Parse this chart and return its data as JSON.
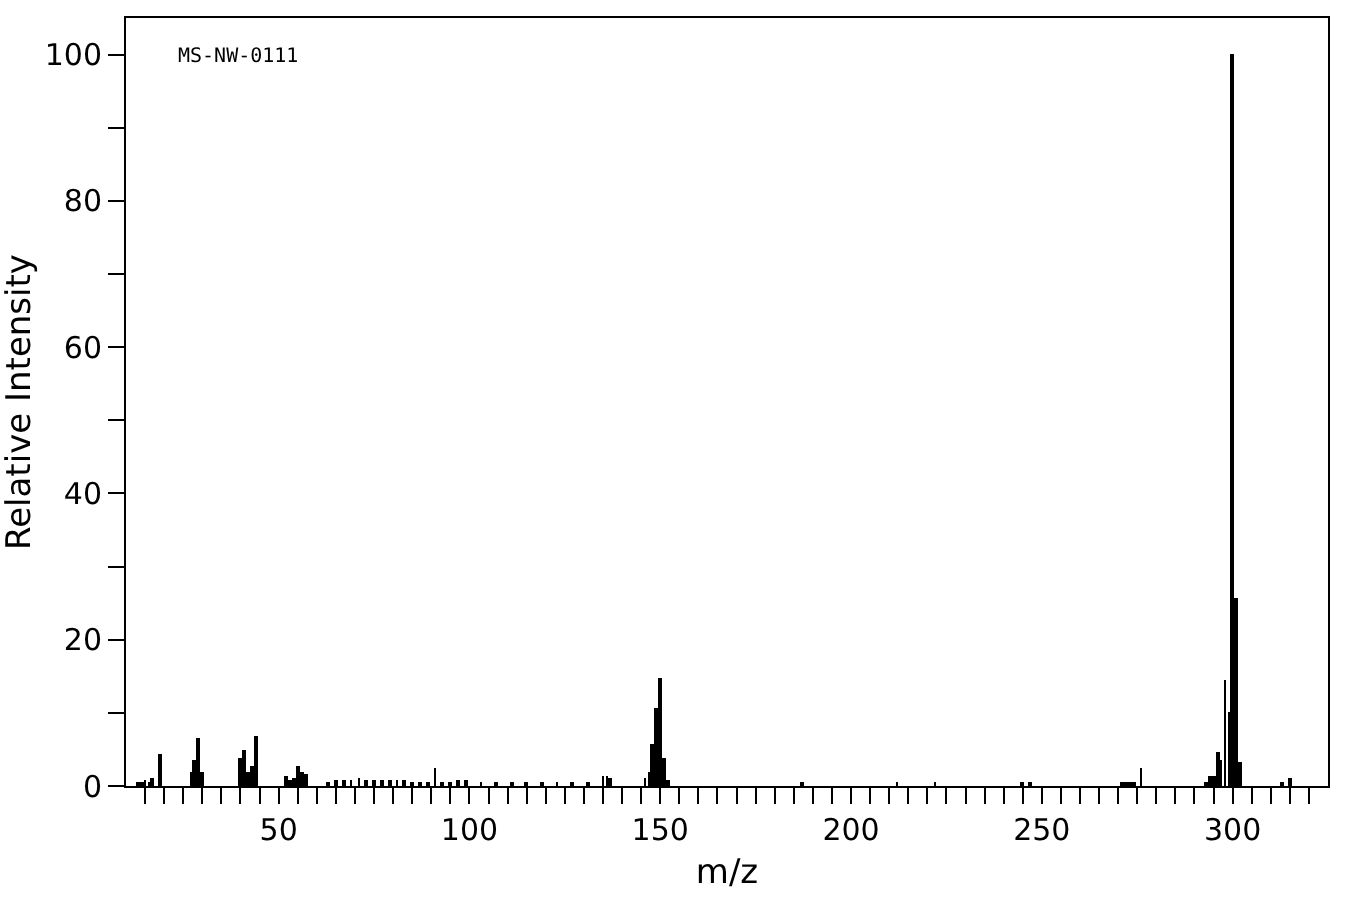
{
  "chart_data": {
    "type": "bar",
    "xlabel": "m/z",
    "ylabel": "Relative Intensity",
    "annotations": [
      "MS-NW-0111"
    ],
    "x": [
      13,
      14,
      15,
      16,
      17,
      19,
      27,
      28,
      29,
      30,
      40,
      41,
      42,
      43,
      44,
      52,
      53,
      54,
      55,
      56,
      57,
      63,
      65,
      67,
      69,
      71,
      73,
      75,
      77,
      79,
      81,
      83,
      85,
      87,
      89,
      91,
      93,
      95,
      97,
      99,
      103,
      107,
      111,
      115,
      119,
      123,
      127,
      131,
      135,
      136,
      137,
      146,
      147,
      148,
      149,
      150,
      151,
      152,
      187,
      212,
      222,
      245,
      247,
      271,
      272,
      273,
      274,
      276,
      293,
      294,
      295,
      296,
      297,
      298,
      299,
      300,
      301,
      302,
      313,
      315
    ],
    "values": [
      0.5,
      0.6,
      0.8,
      0.6,
      1.2,
      4.3,
      2.0,
      3.6,
      6.7,
      2.0,
      3.9,
      5.0,
      1.8,
      2.8,
      6.9,
      1.4,
      0.8,
      1.1,
      2.8,
      1.8,
      1.7,
      0.6,
      0.8,
      0.8,
      0.9,
      1.0,
      0.7,
      0.8,
      0.9,
      0.7,
      0.8,
      0.7,
      0.6,
      0.6,
      0.5,
      2.5,
      0.6,
      0.6,
      0.7,
      0.9,
      0.5,
      0.6,
      0.5,
      0.5,
      0.6,
      0.4,
      0.5,
      0.5,
      1.4,
      1.4,
      1.0,
      1.0,
      1.8,
      5.7,
      10.7,
      14.8,
      3.9,
      0.8,
      0.5,
      0.3,
      0.4,
      0.4,
      0.4,
      0.5,
      0.5,
      0.6,
      0.5,
      2.5,
      0.4,
      1.5,
      1.5,
      4.7,
      3.6,
      14.4,
      10.2,
      100,
      25.7,
      3.4,
      0.5,
      1.0
    ],
    "color": "#000000",
    "xlim": [
      10,
      325
    ],
    "xticks": [
      {
        "value": 15,
        "label": null
      },
      {
        "value": 20,
        "label": null
      },
      {
        "value": 25,
        "label": null
      },
      {
        "value": 30,
        "label": null
      },
      {
        "value": 35,
        "label": null
      },
      {
        "value": 40,
        "label": null
      },
      {
        "value": 45,
        "label": null
      },
      50,
      {
        "value": 55,
        "label": null
      },
      {
        "value": 60,
        "label": null
      },
      {
        "value": 65,
        "label": null
      },
      {
        "value": 70,
        "label": null
      },
      {
        "value": 75,
        "label": null
      },
      {
        "value": 80,
        "label": null
      },
      {
        "value": 85,
        "label": null
      },
      {
        "value": 90,
        "label": null
      },
      {
        "value": 95,
        "label": null
      },
      100,
      {
        "value": 105,
        "label": null
      },
      {
        "value": 110,
        "label": null
      },
      {
        "value": 115,
        "label": null
      },
      {
        "value": 120,
        "label": null
      },
      {
        "value": 125,
        "label": null
      },
      {
        "value": 130,
        "label": null
      },
      {
        "value": 135,
        "label": null
      },
      {
        "value": 140,
        "label": null
      },
      {
        "value": 145,
        "label": null
      },
      150,
      {
        "value": 155,
        "label": null
      },
      {
        "value": 160,
        "label": null
      },
      {
        "value": 165,
        "label": null
      },
      {
        "value": 170,
        "label": null
      },
      {
        "value": 175,
        "label": null
      },
      {
        "value": 180,
        "label": null
      },
      {
        "value": 185,
        "label": null
      },
      {
        "value": 190,
        "label": null
      },
      {
        "value": 195,
        "label": null
      },
      200,
      {
        "value": 205,
        "label": null
      },
      {
        "value": 210,
        "label": null
      },
      {
        "value": 215,
        "label": null
      },
      {
        "value": 220,
        "label": null
      },
      {
        "value": 225,
        "label": null
      },
      {
        "value": 230,
        "label": null
      },
      {
        "value": 235,
        "label": null
      },
      {
        "value": 240,
        "label": null
      },
      {
        "value": 245,
        "label": null
      },
      250,
      {
        "value": 255,
        "label": null
      },
      {
        "value": 260,
        "label": null
      },
      {
        "value": 265,
        "label": null
      },
      {
        "value": 270,
        "label": null
      },
      {
        "value": 275,
        "label": null
      },
      {
        "value": 280,
        "label": null
      },
      {
        "value": 285,
        "label": null
      },
      {
        "value": 290,
        "label": null
      },
      {
        "value": 295,
        "label": null
      },
      300,
      {
        "value": 305,
        "label": null
      },
      {
        "value": 310,
        "label": null
      },
      {
        "value": 315,
        "label": null
      },
      {
        "value": 320,
        "label": null
      }
    ],
    "ylim": [
      0,
      105
    ],
    "yticks": [
      0,
      {
        "value": 10,
        "label": null
      },
      20,
      {
        "value": 30,
        "label": null
      },
      40,
      {
        "value": 50,
        "label": null
      },
      60,
      {
        "value": 70,
        "label": null
      },
      80,
      {
        "value": 90,
        "label": null
      },
      100
    ],
    "grid": false,
    "legend": false
  }
}
